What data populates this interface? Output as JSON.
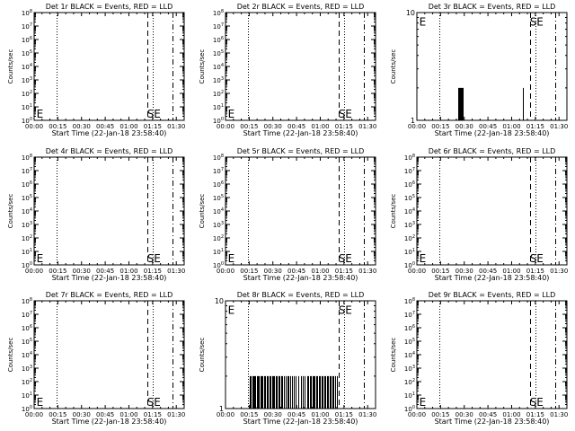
{
  "chart_data": [
    {
      "type": "bar",
      "title": "Det 1r BLACK = Events, RED = LLD",
      "xlabel": "Start Time (22-Jan-18 23:58:40)",
      "ylabel": "Counts/sec",
      "yscale": "log",
      "ylim": [
        1,
        100000000
      ],
      "ytick_labels": [
        "10^0",
        "10^1",
        "10^2",
        "10^3",
        "10^4",
        "10^5",
        "10^6",
        "10^7",
        "10^8"
      ],
      "xtick_labels": [
        "00:00",
        "00:15",
        "00:30",
        "00:45",
        "01:00",
        "01:15",
        "01:30"
      ],
      "x_minutes_range": [
        0,
        95
      ],
      "vlines": [
        {
          "x": 14.5,
          "style": "dotted"
        },
        {
          "x": 71.5,
          "style": "dashed"
        },
        {
          "x": 75,
          "style": "dotted"
        },
        {
          "x": 87.5,
          "style": "dashdot"
        }
      ],
      "markers": [
        {
          "text": "E",
          "x": 1.5,
          "y": 1.6
        },
        {
          "text": "SE",
          "x": 71.5,
          "y": 1.6
        }
      ],
      "events": []
    },
    {
      "type": "bar",
      "title": "Det 2r BLACK = Events, RED = LLD",
      "xlabel": "Start Time (22-Jan-18 23:58:40)",
      "ylabel": "Counts/sec",
      "yscale": "log",
      "ylim": [
        1,
        100000000
      ],
      "ytick_labels": [
        "10^0",
        "10^1",
        "10^2",
        "10^3",
        "10^4",
        "10^5",
        "10^6",
        "10^7",
        "10^8"
      ],
      "xtick_labels": [
        "00:00",
        "00:15",
        "00:30",
        "00:45",
        "01:00",
        "01:15",
        "01:30"
      ],
      "x_minutes_range": [
        0,
        95
      ],
      "vlines": [
        {
          "x": 14.5,
          "style": "dotted"
        },
        {
          "x": 71.5,
          "style": "dashed"
        },
        {
          "x": 75,
          "style": "dotted"
        },
        {
          "x": 87.5,
          "style": "dashdot"
        }
      ],
      "markers": [
        {
          "text": "E",
          "x": 1.5,
          "y": 1.6
        },
        {
          "text": "SE",
          "x": 71.5,
          "y": 1.6
        }
      ],
      "events": []
    },
    {
      "type": "bar",
      "title": "Det 3r BLACK = Events, RED = LLD",
      "xlabel": "Start Time (22-Jan-18 23:58:40)",
      "ylabel": "Counts/sec",
      "yscale": "log",
      "ylim": [
        1,
        10
      ],
      "ytick_labels": [
        "1",
        "10"
      ],
      "xtick_labels": [
        "00:00",
        "00:15",
        "00:30",
        "00:45",
        "01:00",
        "01:15",
        "01:30"
      ],
      "x_minutes_range": [
        0,
        95
      ],
      "vlines": [
        {
          "x": 14.5,
          "style": "dotted"
        },
        {
          "x": 71.5,
          "style": "dashed"
        },
        {
          "x": 75,
          "style": "dotted"
        },
        {
          "x": 87.5,
          "style": "dashdot"
        }
      ],
      "markers": [
        {
          "text": "E",
          "x": 1.5,
          "y": 7.6
        },
        {
          "text": "SE",
          "x": 71.5,
          "y": 7.6
        }
      ],
      "events": [
        {
          "x": 26,
          "y": 2
        },
        {
          "x": 26.6,
          "y": 2
        },
        {
          "x": 27.2,
          "y": 2
        },
        {
          "x": 27.8,
          "y": 2
        },
        {
          "x": 28.4,
          "y": 2
        },
        {
          "x": 29,
          "y": 2
        },
        {
          "x": 67,
          "y": 2
        }
      ]
    },
    {
      "type": "bar",
      "title": "Det 4r BLACK = Events, RED = LLD",
      "xlabel": "Start Time (22-Jan-18 23:58:40)",
      "ylabel": "Counts/sec",
      "yscale": "log",
      "ylim": [
        1,
        100000000
      ],
      "ytick_labels": [
        "10^0",
        "10^1",
        "10^2",
        "10^3",
        "10^4",
        "10^5",
        "10^6",
        "10^7",
        "10^8"
      ],
      "xtick_labels": [
        "00:00",
        "00:15",
        "00:30",
        "00:45",
        "01:00",
        "01:15",
        "01:30"
      ],
      "x_minutes_range": [
        0,
        95
      ],
      "vlines": [
        {
          "x": 14.5,
          "style": "dotted"
        },
        {
          "x": 71.5,
          "style": "dashed"
        },
        {
          "x": 75,
          "style": "dotted"
        },
        {
          "x": 87.5,
          "style": "dashdot"
        }
      ],
      "markers": [
        {
          "text": "E",
          "x": 1.5,
          "y": 1.6
        },
        {
          "text": "SE",
          "x": 71.5,
          "y": 1.6
        }
      ],
      "events": []
    },
    {
      "type": "bar",
      "title": "Det 5r BLACK = Events, RED = LLD",
      "xlabel": "Start Time (22-Jan-18 23:58:40)",
      "ylabel": "Counts/sec",
      "yscale": "log",
      "ylim": [
        1,
        100000000
      ],
      "ytick_labels": [
        "10^0",
        "10^1",
        "10^2",
        "10^3",
        "10^4",
        "10^5",
        "10^6",
        "10^7",
        "10^8"
      ],
      "xtick_labels": [
        "00:00",
        "00:15",
        "00:30",
        "00:45",
        "01:00",
        "01:15",
        "01:30"
      ],
      "x_minutes_range": [
        0,
        95
      ],
      "vlines": [
        {
          "x": 14.5,
          "style": "dotted"
        },
        {
          "x": 71.5,
          "style": "dashed"
        },
        {
          "x": 75,
          "style": "dotted"
        },
        {
          "x": 87.5,
          "style": "dashdot"
        }
      ],
      "markers": [
        {
          "text": "E",
          "x": 1.5,
          "y": 1.6
        },
        {
          "text": "SE",
          "x": 71.5,
          "y": 1.6
        }
      ],
      "events": []
    },
    {
      "type": "bar",
      "title": "Det 6r BLACK = Events, RED = LLD",
      "xlabel": "Start Time (22-Jan-18 23:58:40)",
      "ylabel": "Counts/sec",
      "yscale": "log",
      "ylim": [
        1,
        100000000
      ],
      "ytick_labels": [
        "10^0",
        "10^1",
        "10^2",
        "10^3",
        "10^4",
        "10^5",
        "10^6",
        "10^7",
        "10^8"
      ],
      "xtick_labels": [
        "00:00",
        "00:15",
        "00:30",
        "00:45",
        "01:00",
        "01:15",
        "01:30"
      ],
      "x_minutes_range": [
        0,
        95
      ],
      "vlines": [
        {
          "x": 14.5,
          "style": "dotted"
        },
        {
          "x": 71.5,
          "style": "dashed"
        },
        {
          "x": 75,
          "style": "dotted"
        },
        {
          "x": 87.5,
          "style": "dashdot"
        }
      ],
      "markers": [
        {
          "text": "E",
          "x": 1.5,
          "y": 1.6
        },
        {
          "text": "SE",
          "x": 71.5,
          "y": 1.6
        }
      ],
      "events": []
    },
    {
      "type": "bar",
      "title": "Det 7r BLACK = Events, RED = LLD",
      "xlabel": "Start Time (22-Jan-18 23:58:40)",
      "ylabel": "Counts/sec",
      "yscale": "log",
      "ylim": [
        1,
        100000000
      ],
      "ytick_labels": [
        "10^0",
        "10^1",
        "10^2",
        "10^3",
        "10^4",
        "10^5",
        "10^6",
        "10^7",
        "10^8"
      ],
      "xtick_labels": [
        "00:00",
        "00:15",
        "00:30",
        "00:45",
        "01:00",
        "01:15",
        "01:30"
      ],
      "x_minutes_range": [
        0,
        95
      ],
      "vlines": [
        {
          "x": 14.5,
          "style": "dotted"
        },
        {
          "x": 71.5,
          "style": "dashed"
        },
        {
          "x": 75,
          "style": "dotted"
        },
        {
          "x": 87.5,
          "style": "dashdot"
        }
      ],
      "markers": [
        {
          "text": "E",
          "x": 1.5,
          "y": 1.6
        },
        {
          "text": "SE",
          "x": 71.5,
          "y": 1.6
        }
      ],
      "events": []
    },
    {
      "type": "bar",
      "title": "Det 8r BLACK = Events, RED = LLD",
      "xlabel": "Start Time (22-Jan-18 23:58:40)",
      "ylabel": "Counts/sec",
      "yscale": "log",
      "ylim": [
        1,
        10
      ],
      "ytick_labels": [
        "1",
        "10"
      ],
      "xtick_labels": [
        "00:00",
        "00:15",
        "00:30",
        "00:45",
        "01:00",
        "01:15",
        "01:30"
      ],
      "x_minutes_range": [
        0,
        95
      ],
      "vlines": [
        {
          "x": 14.5,
          "style": "dotted"
        },
        {
          "x": 71.5,
          "style": "dashed"
        },
        {
          "x": 75,
          "style": "dotted"
        },
        {
          "x": 87.5,
          "style": "dashdot"
        }
      ],
      "markers": [
        {
          "text": "E",
          "x": 1.5,
          "y": 7.6
        },
        {
          "text": "SE",
          "x": 71.5,
          "y": 7.6
        }
      ],
      "events": [
        {
          "x": 15.5,
          "y": 2
        },
        {
          "x": 16.2,
          "y": 2
        },
        {
          "x": 17,
          "y": 2
        },
        {
          "x": 17.6,
          "y": 2
        },
        {
          "x": 18.3,
          "y": 2
        },
        {
          "x": 19,
          "y": 2
        },
        {
          "x": 19.8,
          "y": 2
        },
        {
          "x": 20.5,
          "y": 2
        },
        {
          "x": 21.1,
          "y": 2
        },
        {
          "x": 22,
          "y": 2
        },
        {
          "x": 22.8,
          "y": 2
        },
        {
          "x": 23.5,
          "y": 2
        },
        {
          "x": 24.4,
          "y": 2
        },
        {
          "x": 25.2,
          "y": 2
        },
        {
          "x": 26,
          "y": 2
        },
        {
          "x": 26.9,
          "y": 2
        },
        {
          "x": 27.7,
          "y": 2
        },
        {
          "x": 28.5,
          "y": 2
        },
        {
          "x": 29.3,
          "y": 2
        },
        {
          "x": 30.1,
          "y": 2
        },
        {
          "x": 31,
          "y": 2
        },
        {
          "x": 31.8,
          "y": 2
        },
        {
          "x": 32.6,
          "y": 2
        },
        {
          "x": 33.5,
          "y": 2
        },
        {
          "x": 34.3,
          "y": 2
        },
        {
          "x": 35.2,
          "y": 2
        },
        {
          "x": 36,
          "y": 2
        },
        {
          "x": 37,
          "y": 2
        },
        {
          "x": 38,
          "y": 2
        },
        {
          "x": 39,
          "y": 2
        },
        {
          "x": 40,
          "y": 2
        },
        {
          "x": 41,
          "y": 2
        },
        {
          "x": 42,
          "y": 2
        },
        {
          "x": 43,
          "y": 2
        },
        {
          "x": 44.5,
          "y": 2
        },
        {
          "x": 46,
          "y": 2
        },
        {
          "x": 47.5,
          "y": 2
        },
        {
          "x": 49,
          "y": 2
        },
        {
          "x": 50.2,
          "y": 2
        },
        {
          "x": 51.5,
          "y": 2
        },
        {
          "x": 52.6,
          "y": 2
        },
        {
          "x": 53.4,
          "y": 2
        },
        {
          "x": 54.3,
          "y": 2
        },
        {
          "x": 55,
          "y": 2
        },
        {
          "x": 55.8,
          "y": 2
        },
        {
          "x": 56.6,
          "y": 2
        },
        {
          "x": 57.5,
          "y": 2
        },
        {
          "x": 58.3,
          "y": 2
        },
        {
          "x": 59.2,
          "y": 2
        },
        {
          "x": 60,
          "y": 2
        },
        {
          "x": 60.8,
          "y": 2
        },
        {
          "x": 61.7,
          "y": 2
        },
        {
          "x": 62.5,
          "y": 2
        },
        {
          "x": 63.4,
          "y": 2
        },
        {
          "x": 64.2,
          "y": 2
        },
        {
          "x": 65,
          "y": 2
        },
        {
          "x": 65.9,
          "y": 2
        },
        {
          "x": 66.7,
          "y": 2
        },
        {
          "x": 67.6,
          "y": 2
        },
        {
          "x": 68.5,
          "y": 2
        },
        {
          "x": 69.4,
          "y": 2
        },
        {
          "x": 70.3,
          "y": 2
        }
      ]
    },
    {
      "type": "bar",
      "title": "Det 9r BLACK = Events, RED = LLD",
      "xlabel": "Start Time (22-Jan-18 23:58:40)",
      "ylabel": "Counts/sec",
      "yscale": "log",
      "ylim": [
        1,
        100000000
      ],
      "ytick_labels": [
        "10^0",
        "10^1",
        "10^2",
        "10^3",
        "10^4",
        "10^5",
        "10^6",
        "10^7",
        "10^8"
      ],
      "xtick_labels": [
        "00:00",
        "00:15",
        "00:30",
        "00:45",
        "01:00",
        "01:15",
        "01:30"
      ],
      "x_minutes_range": [
        0,
        95
      ],
      "vlines": [
        {
          "x": 14.5,
          "style": "dotted"
        },
        {
          "x": 71.5,
          "style": "dashed"
        },
        {
          "x": 75,
          "style": "dotted"
        },
        {
          "x": 87.5,
          "style": "dashdot"
        }
      ],
      "markers": [
        {
          "text": "E",
          "x": 1.5,
          "y": 1.6
        },
        {
          "text": "SE",
          "x": 71.5,
          "y": 1.6
        }
      ],
      "events": []
    }
  ]
}
